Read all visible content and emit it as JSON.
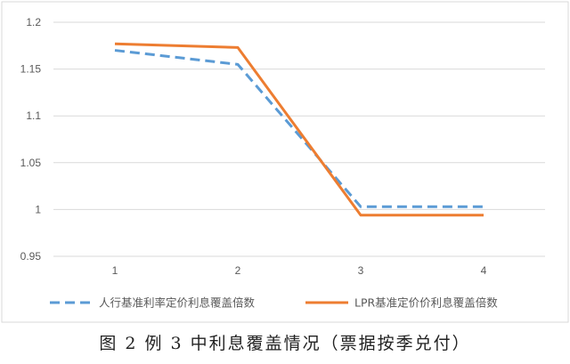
{
  "caption": "图 2 例 3 中利息覆盖情况（票据按季兑付）",
  "chart_data": {
    "type": "line",
    "x": [
      "1",
      "2",
      "3",
      "4"
    ],
    "ylim": [
      0.95,
      1.2
    ],
    "yticks": [
      "0.95",
      "1",
      "1.05",
      "1.1",
      "1.15",
      "1.2"
    ],
    "ytick_values": [
      0.95,
      1.0,
      1.05,
      1.1,
      1.15,
      1.2
    ],
    "grid": "horizontal",
    "legend_position": "bottom",
    "series": [
      {
        "name": "人行基准利率定价利息覆盖倍数",
        "values": [
          1.17,
          1.155,
          1.003,
          1.003
        ],
        "color": "#5B9BD5",
        "style": "dashed"
      },
      {
        "name": "LPR基准定价价利息覆盖倍数",
        "values": [
          1.177,
          1.173,
          0.994,
          0.994
        ],
        "color": "#ED7D31",
        "style": "solid"
      }
    ]
  }
}
